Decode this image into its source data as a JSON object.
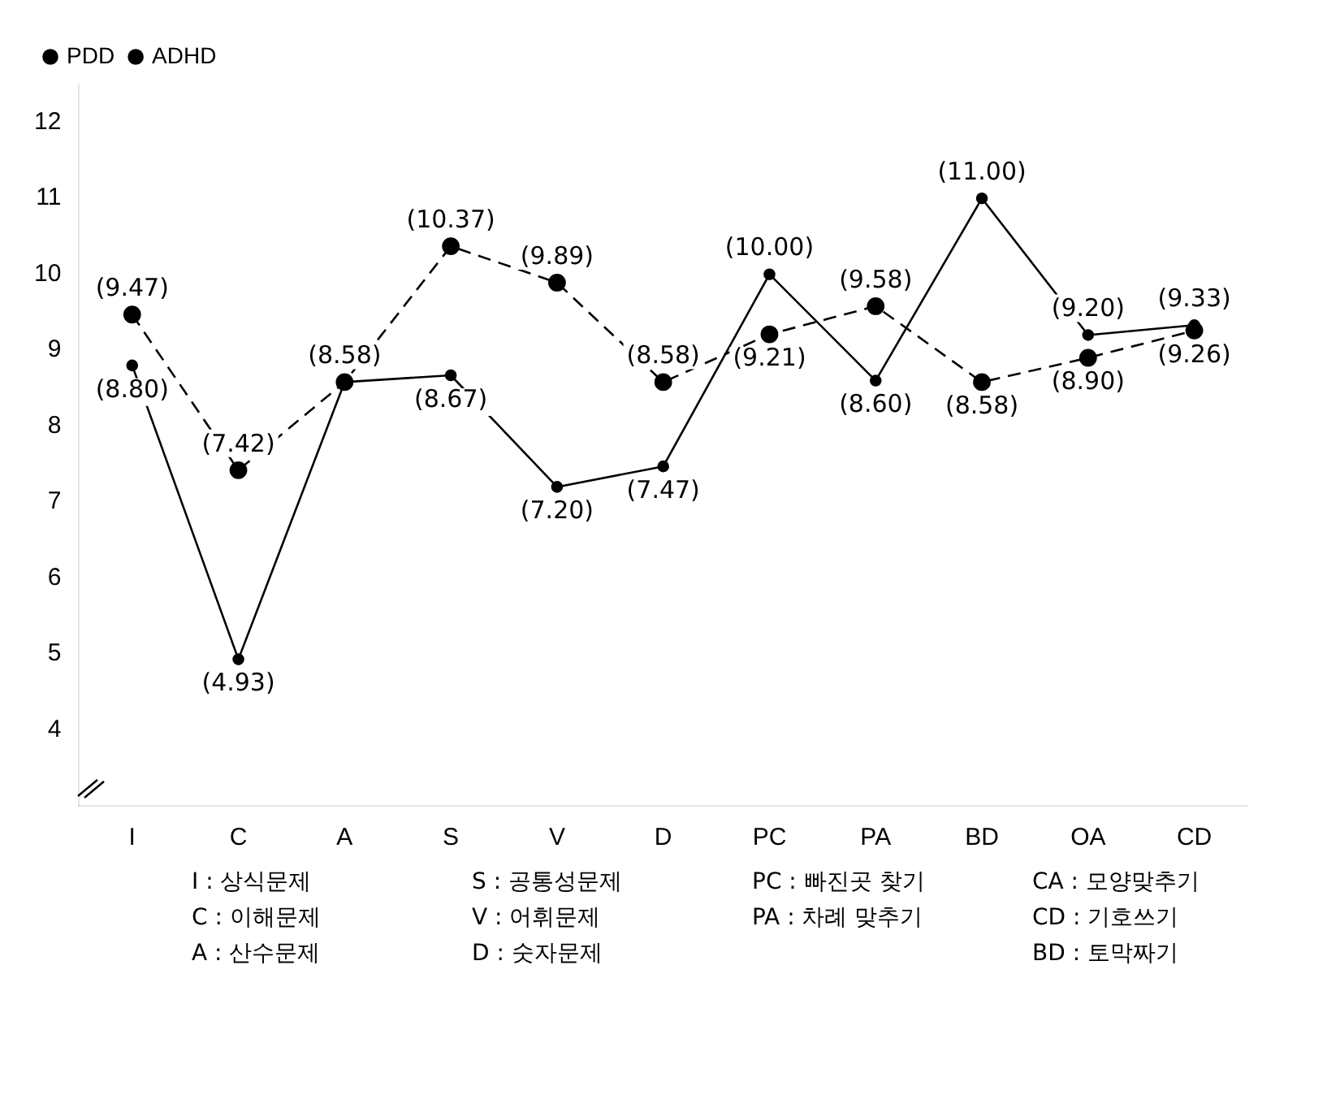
{
  "chart_data": {
    "type": "line",
    "categories": [
      "I",
      "C",
      "A",
      "S",
      "V",
      "D",
      "PC",
      "PA",
      "BD",
      "OA",
      "CD"
    ],
    "series": [
      {
        "name": "PDD",
        "color": "#000000",
        "line_style": "solid",
        "values": [
          8.8,
          4.93,
          8.58,
          8.67,
          7.2,
          7.47,
          10.0,
          8.6,
          11.0,
          9.2,
          9.33
        ],
        "value_labels": [
          "(8.80)",
          "(4.93)",
          "(8.58)",
          "(8.67)",
          "(7.20)",
          "(7.47)",
          "(10.00)",
          "(8.60)",
          "(11.00)",
          "(9.20)",
          "(9.33)"
        ]
      },
      {
        "name": "ADHD",
        "color": "#000000",
        "line_style": "dashed",
        "values": [
          9.47,
          7.42,
          8.58,
          10.37,
          9.89,
          8.58,
          9.21,
          9.58,
          8.58,
          8.9,
          9.26
        ],
        "value_labels": [
          "(9.47)",
          "(7.42)",
          null,
          "(10.37)",
          "(9.89)",
          "(8.58)",
          "(9.21)",
          "(9.58)",
          "(8.58)",
          "(8.90)",
          "(9.26)"
        ]
      }
    ],
    "ylim": [
      3,
      12.5
    ],
    "yticks": [
      4,
      5,
      6,
      7,
      8,
      9,
      10,
      11,
      12
    ],
    "grid": false,
    "legend": "top left",
    "marker": "circle",
    "annotations": [
      "I : 상식문제",
      "C : 이해문제",
      "A : 산수문제",
      "S : 공통성문제",
      "V : 어휘문제",
      "D : 숫자문제",
      "PC : 빠진곳 찾기",
      "PA : 차례 맞추기",
      "CA : 모양맞추기",
      "CD : 기호쓰기",
      "BD : 토막짜기"
    ]
  }
}
